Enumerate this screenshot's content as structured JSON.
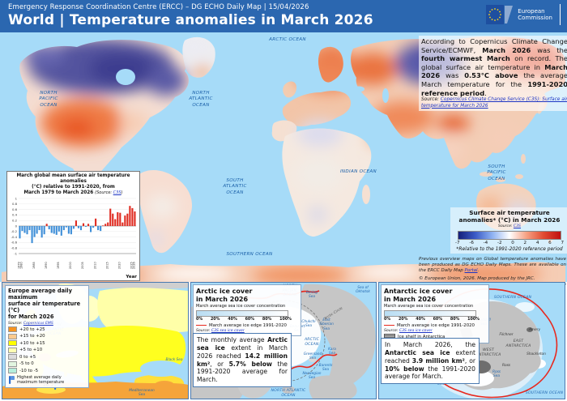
{
  "header": {
    "line1": "Emergency Response Coordination Centre (ERCC) – DG ECHO Daily Map | 15/04/2026",
    "title": "World | Temperature anomalies in March 2026",
    "logo": {
      "l1": "European",
      "l2": "Commission"
    }
  },
  "summary": {
    "s1": "According to Copernicus Climate Change Service/ECMWF, ",
    "s2": "March 2026",
    "s3": " was the ",
    "s4": "fourth warmest March",
    "s5": " on record. The global surface air temperature in ",
    "s6": "March 2026",
    "s7": " was ",
    "s8": "0.53°C above",
    "s9": " the average March temperature for the ",
    "s10": "1991-2020 reference period",
    "s11": ".",
    "source_label": "Source: ",
    "source_link": "Copernicus Climate Change Service (C3S): Surface air temperature for March 2026"
  },
  "colorbar": {
    "title_l1": "Surface air temperature",
    "title_l2": "anomalies* (°C) in March 2026",
    "source_label": "Source: ",
    "source_link": "C3S",
    "ticks": [
      "-7",
      "-6",
      "-4",
      "-2",
      "0",
      "2",
      "4",
      "6",
      "7"
    ],
    "footnote": "*Relative to the 1991-2020 reference period"
  },
  "notes": {
    "p1": "Previous overview maps on Global temperature anomalies have been produced as DG ECHO Daily Maps. These are available on the ERCC Daily Map ",
    "p1_link": "Portal",
    "p1_end": ".",
    "p2": "© European Union, 2026. Map produced by the JRC.",
    "p3": "The boundaries and the names shown on this map do not imply official endorsement or acceptance by the European Union."
  },
  "ocean_labels": {
    "arctic": "ARCTIC OCEAN",
    "north_pacific": "NORTH\nPACIFIC\nOCEAN",
    "north_atlantic": "NORTH\nATLANTIC\nOCEAN",
    "indian": "INDIAN OCEAN",
    "south_atlantic": "SOUTH\nATLANTIC\nOCEAN",
    "south_pacific": "SOUTH\nPACIFIC\nOCEAN",
    "southern": "SOUTHERN OCEAN"
  },
  "chart": {
    "title_l1": "March global mean surface air temperature anomalies",
    "title_l2": "(°C) relative to 1991-2020, from",
    "title_l3": "March 1979 to March 2026 ",
    "source_prefix": "(Source: ",
    "source_link": "C3S",
    "source_suffix": ")",
    "xlabel": "Year"
  },
  "chart_data": {
    "type": "bar",
    "title": "March global mean surface air temperature anomalies (°C) relative to 1991-2020, from March 1979 to March 2026",
    "xlabel": "Year",
    "ylabel": "Temperature anomaly (°C)",
    "ylim": [
      -1,
      1
    ],
    "ytick_step": 0.2,
    "x": [
      1979,
      1980,
      1981,
      1982,
      1983,
      1984,
      1985,
      1986,
      1987,
      1988,
      1989,
      1990,
      1991,
      1992,
      1993,
      1994,
      1995,
      1996,
      1997,
      1998,
      1999,
      2000,
      2001,
      2002,
      2003,
      2004,
      2005,
      2006,
      2007,
      2008,
      2009,
      2010,
      2011,
      2012,
      2013,
      2014,
      2015,
      2016,
      2017,
      2018,
      2019,
      2020,
      2021,
      2022,
      2023,
      2024,
      2025,
      2026
    ],
    "values": [
      -0.45,
      -0.18,
      -0.25,
      -0.3,
      -0.15,
      -0.62,
      -0.4,
      -0.28,
      -0.15,
      -0.42,
      -0.3,
      0.08,
      -0.12,
      -0.25,
      -0.28,
      -0.32,
      -0.2,
      -0.35,
      -0.15,
      -0.05,
      -0.28,
      -0.3,
      -0.1,
      0.2,
      -0.08,
      -0.15,
      0.1,
      -0.03,
      0.08,
      -0.22,
      -0.06,
      0.27,
      -0.15,
      -0.18,
      0.02,
      0.08,
      0.13,
      0.63,
      0.45,
      0.25,
      0.5,
      0.48,
      0.13,
      0.38,
      0.45,
      0.73,
      0.65,
      0.53
    ],
    "xticks": [
      1979,
      1980,
      1985,
      1990,
      1995,
      2000,
      2005,
      2010,
      2015,
      2020,
      2025,
      2026
    ],
    "pos_color": "#e02b20",
    "neg_color": "#3f8fd8",
    "grid": true,
    "legend_position": "none"
  },
  "europe": {
    "title_l1": "Europe average daily maximum",
    "title_l2": "surface air temperature (°C)",
    "title_l3": "for March 2026",
    "source_label": "Source: ",
    "source_link": "Copernicus EMS",
    "legend": [
      {
        "color": "#F7941E",
        "label": "+20 to +25"
      },
      {
        "color": "#FBCA8E",
        "label": "+15 to +20"
      },
      {
        "color": "#FFFF00",
        "label": "+10 to +15"
      },
      {
        "color": "#FFFFB3",
        "label": "+5 to +10"
      },
      {
        "color": "#DCDCDC",
        "label": "0 to +5"
      },
      {
        "color": "#E2F6E0",
        "label": "-5 to 0"
      },
      {
        "color": "#B5EFDC",
        "label": "-10 to -5"
      }
    ],
    "marker_l1": "Highest average daily",
    "marker_l2": "maximum temperature",
    "marker_value": "20.2",
    "labels": {
      "north_atlantic": "NORTH\nATLANTIC\nOCEAN",
      "black_sea": "Black Sea",
      "mediterranean": "Mediterranean\nSea"
    }
  },
  "arctic": {
    "title_l1": "Arctic ice cover",
    "title_l2": "in March 2026",
    "subtitle": "March average sea ice cover concentration",
    "scale_ticks": [
      "0%",
      "20%",
      "40%",
      "60%",
      "80%",
      "100%"
    ],
    "edge_label": "March average ice edge 1991-2020",
    "source_label": "Source: ",
    "source_link": "C3S sea ice cover",
    "body": {
      "b1": "The monthly average ",
      "b2": "Arctic sea ice",
      "b3": " extent in March 2026 reached ",
      "b4": "14.2 million km²",
      "b5": ", or ",
      "b6": "5.7% below",
      "b7": " the 1991-2020 average for March."
    },
    "labels": {
      "north_pacific": "NORTH\nPACIFIC\nOCEAN",
      "bering": "Bering\nSea",
      "okhotsk": "Sea of\nOkhotsk",
      "arctic_circle": "Arctic Circle",
      "chukchi": "Chukchi\nSea",
      "east_siberian": "East\nSiberian\nSea",
      "beaufort": "Beaufort\nSea",
      "arctic_ocean": "ARCTIC\nOCEAN",
      "kara": "Kara\nSea",
      "greenland_sea": "Greenland\nSea",
      "barents": "Barents\nSea",
      "norwegian": "Norwegian\nSea",
      "labrador": "Labrador\nSea",
      "north_atlantic": "NORTH ATLANTIC\nOCEAN"
    }
  },
  "antarctic": {
    "title_l1": "Antarctic ice cover",
    "title_l2": "in March 2026",
    "subtitle": "March average sea ice cover concentration",
    "scale_ticks": [
      "0%",
      "20%",
      "40%",
      "60%",
      "80%",
      "100%"
    ],
    "edge_label": "March average ice edge 1991-2020",
    "source_label": "Source: ",
    "source_link": "C3S sea ice cover",
    "shelf_label": "Ice shelf in Antarctica",
    "body": {
      "b1": "In March 2026, the ",
      "b2": "Antarctic sea ice",
      "b3": " extent reached ",
      "b4": "3.9 million km²",
      "b5": ", or ",
      "b6": "10% below",
      "b7": " the 1991-2020 average for March."
    },
    "labels": {
      "southern_top": "SOUTHERN OCEAN",
      "southern_bottom": "SOUTHERN OCEAN",
      "weddell": "Weddell\nSea",
      "filchner": "Filchner",
      "ronne": "Ronne",
      "east": "EAST\nANTARCTICA",
      "west": "WEST\nANTARCTICA",
      "amery": "Amery",
      "shackleton": "Shackleton",
      "ross": "Ross",
      "ross_sea": "Ross\nSea",
      "amundsen": "Amundsen\nSea"
    }
  }
}
